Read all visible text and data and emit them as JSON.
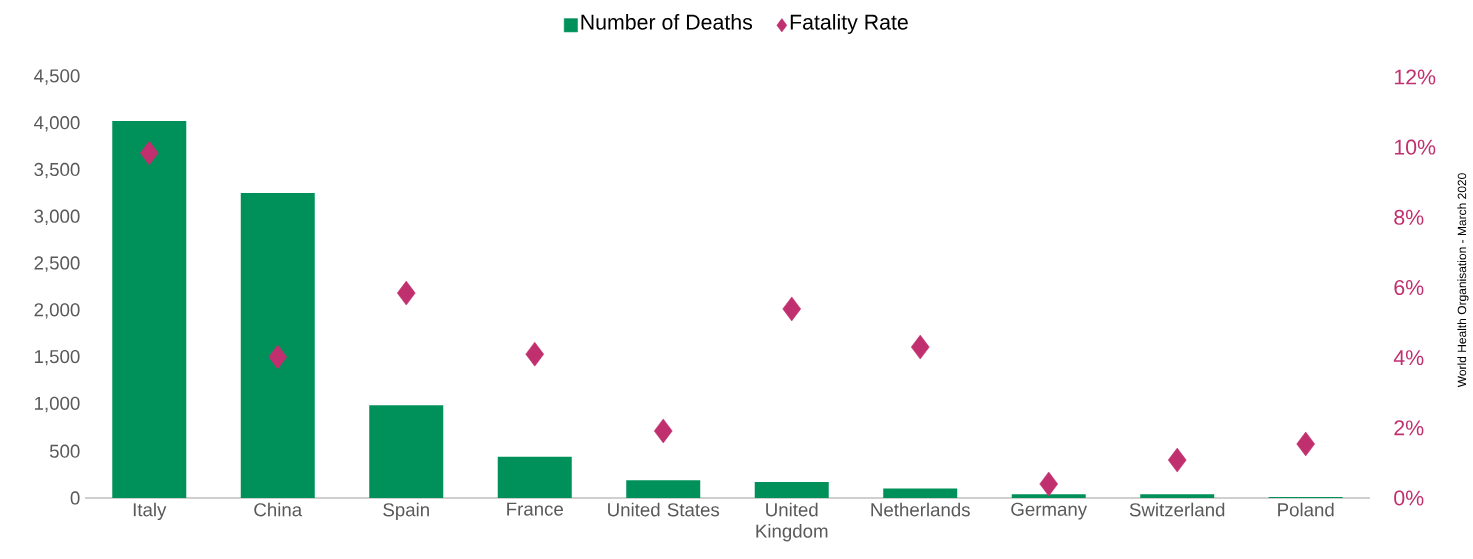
{
  "chart_data": {
    "type": "bar",
    "categories": [
      "Italy",
      "China",
      "Spain",
      "France",
      "United States",
      "United Kingdom",
      "Netherlands",
      "Germany",
      "Switzerland",
      "Poland"
    ],
    "series": [
      {
        "name": "Number of Deaths",
        "color": "#00915a",
        "values": [
          4030,
          3260,
          990,
          440,
          190,
          170,
          100,
          40,
          40,
          10
        ]
      },
      {
        "name": "Fatality Rate",
        "type": "scatter",
        "axis": "y2",
        "marker": "diamond",
        "color": "#c0306f",
        "values": [
          9.83,
          4.02,
          5.84,
          4.1,
          1.91,
          5.39,
          4.3,
          0.4,
          1.08,
          1.54
        ]
      }
    ],
    "ylim": [
      0,
      4500
    ],
    "yticks": [
      0,
      500,
      {
        "value": 1000,
        "label": "1,000"
      },
      {
        "value": 1500,
        "label": "1,500"
      },
      {
        "value": 2000,
        "label": "2,000"
      },
      {
        "value": 2500,
        "label": "2,500"
      },
      {
        "value": 3000,
        "label": "3,000"
      },
      {
        "value": 3500,
        "label": "3,500"
      },
      {
        "value": 4000,
        "label": "4,000"
      },
      {
        "value": 4500,
        "label": "4,500"
      }
    ],
    "y2lim": [
      0,
      12
    ],
    "y2ticks": [
      {
        "value": 0,
        "label": "0%"
      },
      {
        "value": 2,
        "label": "2%"
      },
      {
        "value": 4,
        "label": "4%"
      },
      {
        "value": 6,
        "label": "6%"
      },
      {
        "value": 8,
        "label": "8%"
      },
      {
        "value": 10,
        "label": "10%"
      },
      {
        "value": 12,
        "label": "12%"
      }
    ],
    "legend": "top",
    "grid": false,
    "annotations": [
      "World Health Organisation - March 2020"
    ]
  }
}
